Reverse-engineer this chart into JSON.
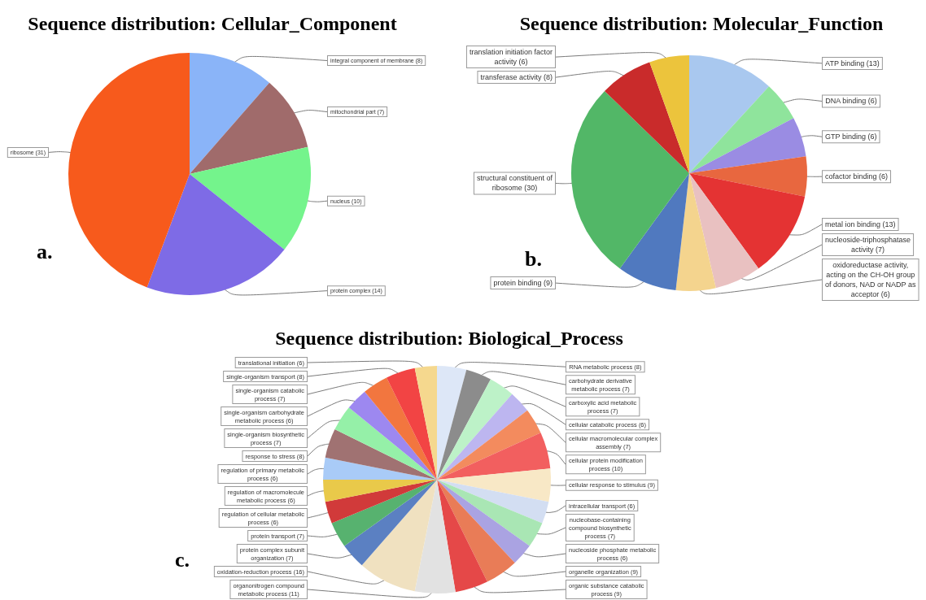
{
  "chart_data": [
    {
      "type": "pie",
      "title": "Sequence distribution: Cellular_Component",
      "categories": [
        "integral component of membrane",
        "mitochondrial part",
        "nucleus",
        "protein complex",
        "ribosome"
      ],
      "values": [
        8,
        7,
        10,
        14,
        31
      ],
      "value_labels": [
        "(8)",
        "(7)",
        "(10)",
        "(14)",
        "(31)"
      ],
      "colors": [
        "#8ab4f8",
        "#a06b6b",
        "#74f48c",
        "#7e6be6",
        "#f75a1c"
      ],
      "annotations": [
        "a."
      ]
    },
    {
      "type": "pie",
      "title": "Sequence distribution: Molecular_Function",
      "categories": [
        "ATP binding",
        "DNA binding",
        "GTP binding",
        "cofactor binding",
        "metal ion binding",
        "nucleoside-triphosphatase activity",
        "oxidoreductase activity, acting on the CH-OH group of donors, NAD or NADP as acceptor",
        "protein binding",
        "structural constituent of ribosome",
        "transferase activity",
        "translation initiation factor activity"
      ],
      "values": [
        13,
        6,
        6,
        6,
        13,
        7,
        6,
        9,
        30,
        8,
        6
      ],
      "value_labels": [
        "(13)",
        "(6)",
        "(6)",
        "(6)",
        "(13)",
        "(7)",
        "(6)",
        "(9)",
        "(30)",
        "(8)",
        "(6)"
      ],
      "colors": [
        "#a9c8ef",
        "#8fe49c",
        "#9a8ce3",
        "#e8673f",
        "#e43333",
        "#e9c1c1",
        "#f4d48e",
        "#5079bf",
        "#52b767",
        "#c92b2b",
        "#ecc43c"
      ],
      "annotations": [
        "b."
      ]
    },
    {
      "type": "pie",
      "title": "Sequence distribution: Biological_Process",
      "categories": [
        "RNA metabolic process",
        "carbohydrate derivative metabolic process",
        "carboxylic acid metabolic process",
        "cellular catabolic process",
        "cellular macromolecular complex assembly",
        "cellular protein modification process",
        "cellular response to stimulus",
        "intracellular transport",
        "nucleobase-containing compound biosynthetic process",
        "nucleoside phosphate metabolic process",
        "organelle organization",
        "organic substance catabolic process",
        "organonitrogen compound metabolic process",
        "oxidation-reduction process",
        "protein complex subunit organization",
        "protein transport",
        "regulation of cellular metabolic process",
        "regulation of macromolecule metabolic process",
        "regulation of primary metabolic process",
        "response to stress",
        "single-organism biosynthetic process",
        "single-organism carbohydrate metabolic process",
        "single-organism catabolic process",
        "single-organism transport",
        "translational initiation"
      ],
      "values": [
        8,
        7,
        7,
        6,
        7,
        10,
        9,
        6,
        7,
        6,
        9,
        9,
        11,
        16,
        7,
        7,
        6,
        6,
        6,
        8,
        7,
        6,
        7,
        8,
        6
      ],
      "value_labels": [
        "(8)",
        "(7)",
        "(7)",
        "(6)",
        "(7)",
        "(10)",
        "(9)",
        "(6)",
        "(7)",
        "(6)",
        "(9)",
        "(9)",
        "(11)",
        "(16)",
        "(7)",
        "(7)",
        "(6)",
        "(6)",
        "(6)",
        "(8)",
        "(7)",
        "(6)",
        "(7)",
        "(8)",
        "(6)"
      ],
      "colors": [
        "#dde7f7",
        "#8c8c8c",
        "#bdf2c8",
        "#bdb6f0",
        "#f38b5e",
        "#f25f5f",
        "#f8e8c6",
        "#d3def2",
        "#a9e6b4",
        "#aaa3e2",
        "#e97c57",
        "#e54848",
        "#e2e2e2",
        "#f0e1c0",
        "#5b80c2",
        "#57b26f",
        "#d13a3a",
        "#e9c94a",
        "#a9cbf7",
        "#a07272",
        "#95f0a8",
        "#9d88f0",
        "#f2763f",
        "#f24444",
        "#f5d88e"
      ],
      "annotations": [
        "c."
      ]
    }
  ]
}
